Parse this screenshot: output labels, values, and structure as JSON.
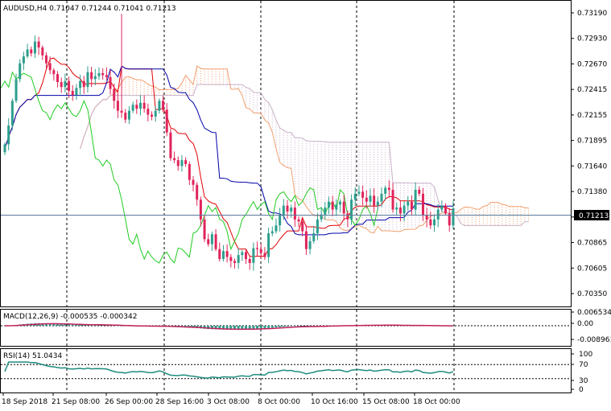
{
  "main_panel": {
    "header": {
      "symbol": "AUDUSD,H4",
      "open": "0.71047",
      "high": "0.71244",
      "low": "0.71041",
      "close": "0.71213"
    },
    "price_tag": "0.71213",
    "y_ticks": [
      "0.73190",
      "0.72930",
      "0.72670",
      "0.72415",
      "0.72155",
      "0.71895",
      "0.71640",
      "0.71380",
      "0.71125",
      "0.70865",
      "0.70605",
      "0.70350"
    ]
  },
  "macd_panel": {
    "label": "MACD(12,26,9) -0.000535 -0.000342",
    "y_ticks": [
      "0.006534",
      "0.00",
      "-0.008961"
    ]
  },
  "rsi_panel": {
    "label": "RSI(14) 51.0434",
    "y_ticks": [
      "100",
      "70",
      "30",
      "0"
    ]
  },
  "x_ticks": [
    "18 Sep 2018",
    "21 Sep 08:00",
    "26 Sep 00:00",
    "28 Sep 16:00",
    "3 Oct 08:00",
    "8 Oct 00:00",
    "10 Oct 16:00",
    "15 Oct 08:00",
    "18 Oct 00:00"
  ],
  "colors": {
    "bull": "#2e9e8e",
    "bear": "#e0245a",
    "tenkan": "#e00000",
    "kijun": "#0000aa",
    "chikou": "#22cc22",
    "kumo_bull": "#f0a070",
    "kumo_bear": "#c8b0c8",
    "macd_hist": "#2e9e8e",
    "macd_signal": "#c0205a",
    "rsi_line": "#1e8c7e"
  },
  "chart_data": {
    "type": "candlestick",
    "title": "AUDUSD,H4",
    "ylim": [
      0.7035,
      0.733
    ],
    "closes": [
      0.7186,
      0.7205,
      0.723,
      0.7252,
      0.7268,
      0.7275,
      0.7282,
      0.7278,
      0.729,
      0.7284,
      0.7276,
      0.7268,
      0.7261,
      0.7257,
      0.7249,
      0.7244,
      0.725,
      0.724,
      0.7236,
      0.7243,
      0.725,
      0.7244,
      0.7259,
      0.7252,
      0.7255,
      0.7258,
      0.7256,
      0.7254,
      0.7242,
      0.723,
      0.722,
      0.7218,
      0.7211,
      0.722,
      0.7226,
      0.7222,
      0.7228,
      0.7222,
      0.7216,
      0.7214,
      0.722,
      0.723,
      0.7221,
      0.7198,
      0.7172,
      0.717,
      0.7164,
      0.717,
      0.7166,
      0.715,
      0.7145,
      0.713,
      0.711,
      0.709,
      0.7085,
      0.7095,
      0.708,
      0.707,
      0.7078,
      0.7072,
      0.7068,
      0.7066,
      0.7074,
      0.7077,
      0.707,
      0.7066,
      0.7081,
      0.708,
      0.7076,
      0.7072,
      0.7096,
      0.7098,
      0.7104,
      0.7114,
      0.7124,
      0.7118,
      0.7122,
      0.711,
      0.7108,
      0.7098,
      0.708,
      0.7088,
      0.7096,
      0.711,
      0.7115,
      0.7122,
      0.7128,
      0.712,
      0.7125,
      0.7128,
      0.7116,
      0.711,
      0.713,
      0.7136,
      0.7138,
      0.7132,
      0.7128,
      0.7134,
      0.7124,
      0.7128,
      0.7136,
      0.7142,
      0.714,
      0.712,
      0.7122,
      0.7116,
      0.7124,
      0.7128,
      0.712,
      0.714,
      0.7136,
      0.7114,
      0.711,
      0.7104,
      0.711,
      0.712,
      0.7124,
      0.7116,
      0.7104,
      0.7121
    ]
  }
}
